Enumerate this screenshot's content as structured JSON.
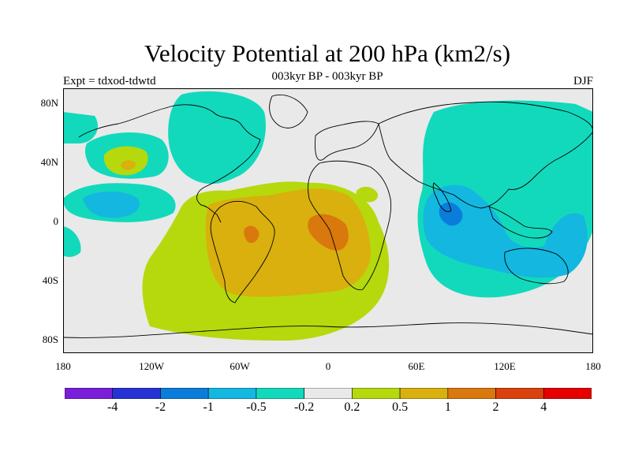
{
  "title": "Velocity Potential at 200 hPa (km2/s)",
  "subtitle": "003kyr BP - 003kyr BP",
  "left_label": "Expt = tdxod-tdwtd",
  "right_label": "DJF",
  "lat_labels": [
    "80N",
    "40N",
    "0",
    "40S",
    "80S"
  ],
  "lon_labels": [
    "180",
    "120W",
    "60W",
    "0",
    "60E",
    "120E",
    "180"
  ],
  "colorbar": {
    "colors": [
      "#7a1fd9",
      "#2533d4",
      "#0a7ddb",
      "#13b7e0",
      "#12d9bc",
      "#e9e9e9",
      "#b5d90d",
      "#d9b00d",
      "#d9780d",
      "#d9420d",
      "#e60000"
    ],
    "tick_labels": [
      "-4",
      "-2",
      "-1",
      "-0.5",
      "-0.2",
      "0.2",
      "0.5",
      "1",
      "2",
      "4"
    ]
  }
}
